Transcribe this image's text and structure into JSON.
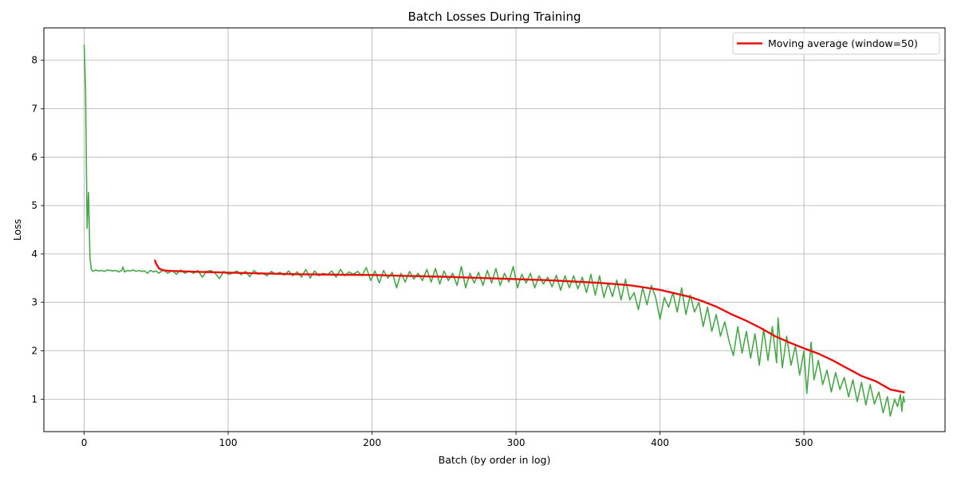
{
  "chart_data": {
    "type": "line",
    "title": "Batch Losses During Training",
    "xlabel": "Batch (by order in log)",
    "ylabel": "Loss",
    "xlim": [
      -28,
      598
    ],
    "ylim": [
      0.33,
      8.67
    ],
    "xticks": [
      0,
      100,
      200,
      300,
      400,
      500
    ],
    "yticks": [
      1,
      2,
      3,
      4,
      5,
      6,
      7,
      8
    ],
    "grid": true,
    "legend_position": "top-right",
    "series": [
      {
        "name": "",
        "role": "raw batch loss",
        "color": "#4aa64a",
        "points": [
          [
            0,
            8.32
          ],
          [
            1,
            7.4
          ],
          [
            2,
            4.53
          ],
          [
            3,
            5.27
          ],
          [
            4,
            3.92
          ],
          [
            5,
            3.68
          ],
          [
            6,
            3.64
          ],
          [
            8,
            3.67
          ],
          [
            10,
            3.65
          ],
          [
            12,
            3.66
          ],
          [
            14,
            3.64
          ],
          [
            16,
            3.67
          ],
          [
            18,
            3.66
          ],
          [
            20,
            3.65
          ],
          [
            22,
            3.66
          ],
          [
            24,
            3.63
          ],
          [
            26,
            3.66
          ],
          [
            27,
            3.73
          ],
          [
            28,
            3.63
          ],
          [
            30,
            3.66
          ],
          [
            32,
            3.65
          ],
          [
            34,
            3.67
          ],
          [
            36,
            3.64
          ],
          [
            38,
            3.66
          ],
          [
            40,
            3.64
          ],
          [
            42,
            3.65
          ],
          [
            44,
            3.6
          ],
          [
            46,
            3.66
          ],
          [
            48,
            3.63
          ],
          [
            50,
            3.65
          ],
          [
            52,
            3.6
          ],
          [
            55,
            3.68
          ],
          [
            58,
            3.6
          ],
          [
            61,
            3.66
          ],
          [
            64,
            3.58
          ],
          [
            67,
            3.67
          ],
          [
            70,
            3.6
          ],
          [
            73,
            3.65
          ],
          [
            76,
            3.6
          ],
          [
            79,
            3.66
          ],
          [
            82,
            3.52
          ],
          [
            85,
            3.64
          ],
          [
            88,
            3.66
          ],
          [
            91,
            3.6
          ],
          [
            94,
            3.49
          ],
          [
            97,
            3.64
          ],
          [
            100,
            3.58
          ],
          [
            103,
            3.6
          ],
          [
            106,
            3.65
          ],
          [
            109,
            3.57
          ],
          [
            112,
            3.64
          ],
          [
            115,
            3.53
          ],
          [
            118,
            3.66
          ],
          [
            121,
            3.58
          ],
          [
            124,
            3.6
          ],
          [
            127,
            3.55
          ],
          [
            130,
            3.64
          ],
          [
            133,
            3.58
          ],
          [
            136,
            3.62
          ],
          [
            139,
            3.56
          ],
          [
            142,
            3.65
          ],
          [
            145,
            3.55
          ],
          [
            148,
            3.63
          ],
          [
            151,
            3.52
          ],
          [
            154,
            3.68
          ],
          [
            157,
            3.5
          ],
          [
            160,
            3.65
          ],
          [
            163,
            3.55
          ],
          [
            166,
            3.6
          ],
          [
            169,
            3.57
          ],
          [
            172,
            3.65
          ],
          [
            175,
            3.52
          ],
          [
            178,
            3.68
          ],
          [
            181,
            3.55
          ],
          [
            184,
            3.63
          ],
          [
            187,
            3.58
          ],
          [
            190,
            3.64
          ],
          [
            193,
            3.55
          ],
          [
            196,
            3.72
          ],
          [
            199,
            3.45
          ],
          [
            202,
            3.65
          ],
          [
            205,
            3.4
          ],
          [
            208,
            3.66
          ],
          [
            211,
            3.5
          ],
          [
            214,
            3.62
          ],
          [
            217,
            3.3
          ],
          [
            220,
            3.6
          ],
          [
            223,
            3.42
          ],
          [
            226,
            3.64
          ],
          [
            229,
            3.48
          ],
          [
            232,
            3.6
          ],
          [
            235,
            3.45
          ],
          [
            238,
            3.68
          ],
          [
            241,
            3.42
          ],
          [
            244,
            3.7
          ],
          [
            247,
            3.38
          ],
          [
            250,
            3.65
          ],
          [
            253,
            3.45
          ],
          [
            256,
            3.6
          ],
          [
            259,
            3.35
          ],
          [
            262,
            3.74
          ],
          [
            265,
            3.3
          ],
          [
            268,
            3.6
          ],
          [
            271,
            3.4
          ],
          [
            274,
            3.62
          ],
          [
            277,
            3.35
          ],
          [
            280,
            3.66
          ],
          [
            283,
            3.4
          ],
          [
            286,
            3.7
          ],
          [
            289,
            3.35
          ],
          [
            292,
            3.6
          ],
          [
            295,
            3.42
          ],
          [
            298,
            3.74
          ],
          [
            301,
            3.3
          ],
          [
            304,
            3.58
          ],
          [
            307,
            3.4
          ],
          [
            310,
            3.6
          ],
          [
            313,
            3.3
          ],
          [
            316,
            3.55
          ],
          [
            319,
            3.38
          ],
          [
            322,
            3.52
          ],
          [
            325,
            3.32
          ],
          [
            328,
            3.56
          ],
          [
            331,
            3.25
          ],
          [
            334,
            3.55
          ],
          [
            337,
            3.3
          ],
          [
            340,
            3.55
          ],
          [
            343,
            3.28
          ],
          [
            346,
            3.52
          ],
          [
            349,
            3.2
          ],
          [
            352,
            3.58
          ],
          [
            355,
            3.15
          ],
          [
            358,
            3.55
          ],
          [
            361,
            3.1
          ],
          [
            364,
            3.4
          ],
          [
            367,
            3.12
          ],
          [
            370,
            3.46
          ],
          [
            373,
            3.05
          ],
          [
            376,
            3.48
          ],
          [
            379,
            3.05
          ],
          [
            382,
            3.2
          ],
          [
            385,
            2.85
          ],
          [
            388,
            3.3
          ],
          [
            391,
            2.95
          ],
          [
            394,
            3.35
          ],
          [
            397,
            3.1
          ],
          [
            400,
            2.65
          ],
          [
            403,
            3.1
          ],
          [
            406,
            2.9
          ],
          [
            409,
            3.2
          ],
          [
            412,
            2.8
          ],
          [
            415,
            3.3
          ],
          [
            418,
            2.75
          ],
          [
            421,
            3.15
          ],
          [
            424,
            2.8
          ],
          [
            427,
            3.0
          ],
          [
            430,
            2.5
          ],
          [
            433,
            2.9
          ],
          [
            436,
            2.4
          ],
          [
            439,
            2.75
          ],
          [
            442,
            2.3
          ],
          [
            445,
            2.6
          ],
          [
            448,
            2.2
          ],
          [
            451,
            1.9
          ],
          [
            454,
            2.5
          ],
          [
            457,
            1.95
          ],
          [
            460,
            2.4
          ],
          [
            463,
            1.85
          ],
          [
            466,
            2.35
          ],
          [
            469,
            1.7
          ],
          [
            472,
            2.45
          ],
          [
            475,
            1.8
          ],
          [
            478,
            2.5
          ],
          [
            481,
            1.75
          ],
          [
            482,
            2.68
          ],
          [
            485,
            1.65
          ],
          [
            488,
            2.3
          ],
          [
            491,
            1.7
          ],
          [
            494,
            2.1
          ],
          [
            497,
            1.5
          ],
          [
            500,
            2.0
          ],
          [
            502,
            1.12
          ],
          [
            505,
            2.18
          ],
          [
            507,
            1.4
          ],
          [
            510,
            1.8
          ],
          [
            513,
            1.3
          ],
          [
            516,
            1.6
          ],
          [
            519,
            1.15
          ],
          [
            522,
            1.55
          ],
          [
            525,
            1.2
          ],
          [
            528,
            1.45
          ],
          [
            531,
            1.05
          ],
          [
            534,
            1.4
          ],
          [
            537,
            0.95
          ],
          [
            540,
            1.35
          ],
          [
            543,
            0.88
          ],
          [
            546,
            1.3
          ],
          [
            549,
            0.9
          ],
          [
            552,
            1.15
          ],
          [
            555,
            0.72
          ],
          [
            558,
            1.05
          ],
          [
            560,
            0.65
          ],
          [
            563,
            1.0
          ],
          [
            565,
            0.85
          ],
          [
            567,
            1.1
          ],
          [
            568,
            0.75
          ],
          [
            569,
            1.05
          ],
          [
            570,
            0.93
          ]
        ]
      },
      {
        "name": "Moving average (window=50)",
        "role": "moving average",
        "color": "#e8100c",
        "points": [
          [
            49,
            3.88
          ],
          [
            50,
            3.8
          ],
          [
            52,
            3.7
          ],
          [
            55,
            3.66
          ],
          [
            60,
            3.65
          ],
          [
            70,
            3.64
          ],
          [
            80,
            3.63
          ],
          [
            100,
            3.615
          ],
          [
            120,
            3.6
          ],
          [
            150,
            3.58
          ],
          [
            180,
            3.57
          ],
          [
            200,
            3.565
          ],
          [
            220,
            3.55
          ],
          [
            250,
            3.53
          ],
          [
            280,
            3.5
          ],
          [
            300,
            3.48
          ],
          [
            320,
            3.46
          ],
          [
            340,
            3.43
          ],
          [
            360,
            3.4
          ],
          [
            380,
            3.35
          ],
          [
            400,
            3.26
          ],
          [
            420,
            3.12
          ],
          [
            430,
            3.02
          ],
          [
            440,
            2.9
          ],
          [
            450,
            2.75
          ],
          [
            460,
            2.62
          ],
          [
            470,
            2.47
          ],
          [
            480,
            2.3
          ],
          [
            490,
            2.17
          ],
          [
            500,
            2.05
          ],
          [
            510,
            1.94
          ],
          [
            520,
            1.8
          ],
          [
            530,
            1.64
          ],
          [
            540,
            1.48
          ],
          [
            550,
            1.37
          ],
          [
            560,
            1.2
          ],
          [
            570,
            1.14
          ]
        ]
      }
    ]
  }
}
